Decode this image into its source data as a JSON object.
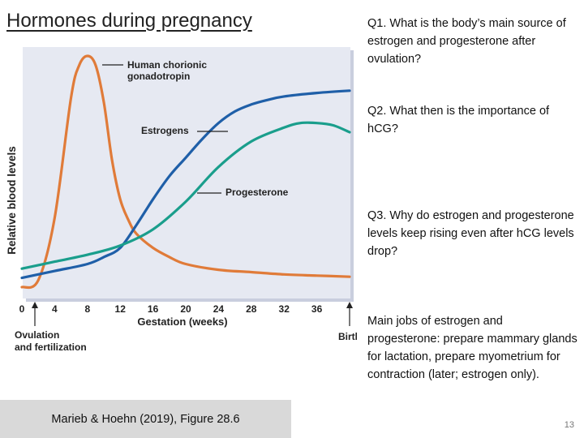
{
  "slide": {
    "title": "Hormones during pregnancy",
    "questions": [
      "Q1. What is the body’s main source of estrogen and progesterone after ovulation?",
      "Q2. What then is the importance of hCG?",
      "Q3. Why do estrogen and progesterone levels keep rising even after hCG levels drop?",
      "Main jobs of estrogen and progesterone: prepare mammary glands for lactation, prepare myometrium for contraction (later; estrogen only)."
    ],
    "citation": "Marieb & Hoehn (2019), Figure 28.6",
    "page_number": "13"
  },
  "chart_data": {
    "type": "line",
    "title": "",
    "xlabel": "Gestation (weeks)",
    "ylabel": "Relative blood levels",
    "xlim": [
      0,
      40
    ],
    "ylim": [
      0,
      100
    ],
    "x_ticks": [
      0,
      4,
      8,
      12,
      16,
      20,
      24,
      28,
      32,
      36
    ],
    "grid": false,
    "annotations": {
      "start": "Ovulation and fertilization",
      "end": "Birth"
    },
    "colors": {
      "hcg": "#e07b39",
      "estrogens": "#1f5fa8",
      "progesterone": "#1a9e8c",
      "panel": "#e6e9f2"
    },
    "series": [
      {
        "name": "Human chorionic gonadotropin",
        "color": "#e07b39",
        "x": [
          0,
          2,
          4,
          6,
          7,
          8,
          9,
          10,
          11,
          12,
          13,
          14,
          16,
          18,
          20,
          24,
          28,
          32,
          36,
          40
        ],
        "y": [
          0,
          3,
          30,
          82,
          96,
          100,
          96,
          80,
          55,
          38,
          29,
          23,
          17,
          13,
          10,
          7.5,
          6.5,
          5.5,
          5,
          4.5
        ]
      },
      {
        "name": "Estrogens",
        "color": "#1f5fa8",
        "x": [
          0,
          4,
          8,
          10,
          12,
          14,
          16,
          18,
          20,
          22,
          24,
          26,
          28,
          30,
          32,
          36,
          40
        ],
        "y": [
          4,
          7,
          10,
          13,
          17,
          27,
          38,
          48,
          56,
          64,
          71,
          76,
          79,
          81,
          82.5,
          84,
          85
        ]
      },
      {
        "name": "Progesterone",
        "color": "#1a9e8c",
        "x": [
          0,
          4,
          8,
          12,
          16,
          20,
          24,
          28,
          32,
          34,
          36,
          38,
          40
        ],
        "y": [
          8,
          11,
          14,
          18,
          25,
          37,
          52,
          63,
          69,
          71,
          71,
          70,
          67
        ]
      }
    ],
    "series_labels": [
      "Human chorionic gonadotropin",
      "Estrogens",
      "Progesterone"
    ]
  }
}
